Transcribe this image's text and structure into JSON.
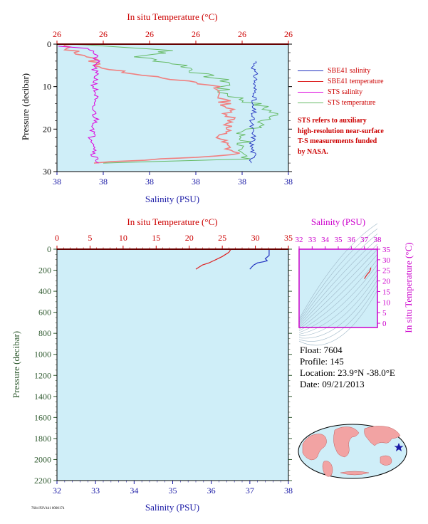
{
  "colors": {
    "background": "#ffffff",
    "plot_bg": "#cfeef8",
    "axis_red": "#cc0000",
    "axis_blue": "#1a1aa6",
    "axis_green": "#2f5a2f",
    "magenta": "#cc00cc",
    "sbe_salinity": "#2030c0",
    "sbe_temperature": "#dd2222",
    "sts_salinity": "#dd00dd",
    "sts_temperature": "#66bb66",
    "sts_temperature_light": "#f08080"
  },
  "top_panel": {
    "title_top": "In situ Temperature (°C)",
    "title_bottom": "Salinity (PSU)",
    "ylabel": "Pressure (decibar)",
    "top_ticks": [
      "26",
      "26",
      "26",
      "26",
      "26",
      "26"
    ],
    "bottom_ticks": [
      "38",
      "38",
      "38",
      "38",
      "38",
      "38"
    ],
    "y_ticks": [
      "0",
      "10",
      "20",
      "30"
    ]
  },
  "legend": {
    "items": [
      {
        "label": "SBE41 salinity",
        "color": "#2030c0"
      },
      {
        "label": "SBE41 temperature",
        "color": "#dd2222"
      },
      {
        "label": "STS salinity",
        "color": "#dd00dd"
      },
      {
        "label": "STS temperature",
        "color": "#66bb66"
      }
    ],
    "note_lines": [
      "STS refers to auxiliary",
      "high-resolution near-surface",
      "T-S measurements funded",
      "by NASA."
    ]
  },
  "bottom_panel": {
    "title_top": "In situ Temperature (°C)",
    "title_bottom": "Salinity (PSU)",
    "ylabel": "Pressure (decibar)",
    "top_ticks": [
      "0",
      "5",
      "10",
      "15",
      "20",
      "25",
      "30",
      "35"
    ],
    "bottom_ticks": [
      "32",
      "33",
      "34",
      "35",
      "36",
      "37",
      "38"
    ],
    "y_ticks": [
      "0",
      "200",
      "400",
      "600",
      "800",
      "1000",
      "1200",
      "1400",
      "1600",
      "1800",
      "2000",
      "2200"
    ]
  },
  "ts_panel": {
    "title_top": "Salinity (PSU)",
    "ylabel": "In situ Temperature (°C)",
    "top_ticks": [
      "32",
      "33",
      "34",
      "35",
      "36",
      "37",
      "38"
    ],
    "right_ticks": [
      "0",
      "5",
      "10",
      "15",
      "20",
      "25",
      "30",
      "35"
    ]
  },
  "float_info": {
    "float": "Float:  7604",
    "profile": "Profile:  145",
    "location": "Location:  23.9°N  -38.0°E",
    "date": "Date:  09/21/2013"
  },
  "footer_text": "7604 P2V441 0000174",
  "chart_data": [
    {
      "type": "line",
      "title": "",
      "xlabel": "Salinity (PSU)",
      "x2label": "In situ Temperature (°C)",
      "ylabel": "Pressure (decibar)",
      "ylim": [
        0,
        30
      ],
      "y_reversed": true,
      "series": [
        {
          "name": "SBE41 salinity",
          "pressure": [
            4,
            6,
            8,
            10,
            12,
            14,
            16,
            18,
            20,
            22,
            24,
            26,
            28
          ],
          "x_frac": [
            0.86,
            0.85,
            0.86,
            0.85,
            0.86,
            0.84,
            0.85,
            0.84,
            0.84,
            0.85,
            0.84,
            0.85,
            0.84
          ]
        },
        {
          "name": "SBE41 temperature",
          "pressure": [
            0,
            1,
            3,
            4,
            5,
            6,
            8,
            10,
            14,
            18,
            22,
            24,
            26,
            28
          ],
          "x_frac": [
            0.02,
            0.04,
            0.14,
            0.16,
            0.18,
            0.22,
            0.48,
            0.68,
            0.73,
            0.76,
            0.7,
            0.73,
            0.78,
            0.16
          ]
        },
        {
          "name": "STS salinity",
          "pressure": [
            0.5,
            1,
            2,
            4,
            6,
            8,
            10,
            12,
            14,
            16,
            18,
            20,
            22,
            24,
            26,
            28
          ],
          "x_frac": [
            0.02,
            0.14,
            0.16,
            0.17,
            0.16,
            0.17,
            0.16,
            0.17,
            0.15,
            0.16,
            0.17,
            0.16,
            0.15,
            0.17,
            0.16,
            0.18
          ]
        },
        {
          "name": "STS temperature",
          "pressure": [
            0,
            0.5,
            1.5,
            3,
            5,
            7,
            9,
            11,
            13,
            15,
            17,
            19,
            21,
            23,
            25,
            27,
            28
          ],
          "x_frac": [
            0.05,
            0.25,
            0.5,
            0.35,
            0.55,
            0.62,
            0.75,
            0.7,
            0.8,
            0.9,
            0.95,
            0.88,
            0.78,
            0.82,
            0.75,
            0.85,
            0.2
          ]
        }
      ]
    },
    {
      "type": "line",
      "title": "",
      "xlabel": "Salinity (PSU)",
      "x2label": "In situ Temperature (°C)",
      "ylabel": "Pressure (decibar)",
      "xlim": [
        32,
        38
      ],
      "x2lim": [
        0,
        35
      ],
      "ylim": [
        0,
        2200
      ],
      "y_reversed": true,
      "series": [
        {
          "name": "Temperature",
          "color": "#dd2222",
          "temperature": [
            26.3,
            26.0,
            25.0,
            24.0,
            23.5,
            23.0,
            22.0,
            21.5,
            21.0
          ],
          "pressure": [
            0,
            30,
            70,
            100,
            115,
            130,
            150,
            170,
            190
          ]
        },
        {
          "name": "Salinity",
          "color": "#2030c0",
          "salinity": [
            37.5,
            37.5,
            37.4,
            37.45,
            37.35,
            37.2,
            37.1,
            37.05,
            37.0
          ],
          "pressure": [
            0,
            60,
            90,
            110,
            120,
            130,
            150,
            170,
            190
          ]
        }
      ]
    },
    {
      "type": "scatter",
      "title": "",
      "xlabel": "Salinity (PSU)",
      "ylabel": "In situ Temperature (°C)",
      "xlim": [
        32,
        38
      ],
      "ylim": [
        -2,
        35
      ],
      "series": [
        {
          "name": "T-S",
          "color": "#dd2222",
          "salinity": [
            37.5,
            37.45,
            37.35,
            37.2,
            37.1,
            37.0
          ],
          "temperature": [
            26.3,
            25.0,
            24.0,
            23.0,
            22.0,
            21.0
          ]
        }
      ]
    }
  ]
}
